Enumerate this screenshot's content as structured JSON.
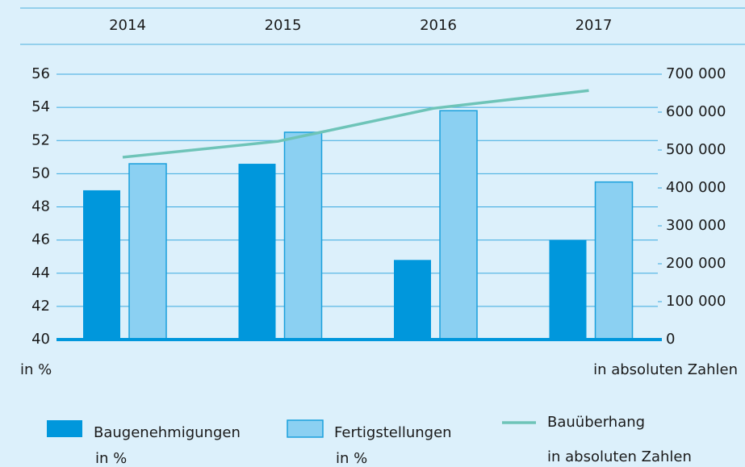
{
  "chart_data": {
    "type": "bar_line",
    "categories": [
      "2014",
      "2015",
      "2016",
      "2017"
    ],
    "series": [
      {
        "name": "Baugenehmigungen",
        "unit": "in %",
        "color": "#0097dc",
        "values": [
          49,
          50.6,
          44.8,
          46
        ]
      },
      {
        "name": "Fertigstellungen",
        "unit": "in %",
        "color": "#8bd0f2",
        "values": [
          50.6,
          52.5,
          53.8,
          49.5
        ]
      },
      {
        "name": "Bauüberhang",
        "unit": "in absoluten Zahlen",
        "color": "#6ec4b8",
        "axis": "y2",
        "type": "line",
        "values": [
          481000,
          523000,
          610000,
          657000
        ]
      }
    ],
    "y_label": "in %",
    "y2_label": "in absoluten Zahlen",
    "ylim": [
      40,
      56
    ],
    "yticks": [
      40,
      42,
      44,
      46,
      48,
      50,
      52,
      54,
      56
    ],
    "y2lim": [
      0,
      700000
    ],
    "y2ticks": [
      0,
      {
        "value": 100000,
        "label": "100 000"
      },
      {
        "value": 200000,
        "label": "200 000"
      },
      {
        "value": 300000,
        "label": "300 000"
      },
      {
        "value": 400000,
        "label": "400 000"
      },
      {
        "value": 500000,
        "label": "500 000"
      },
      {
        "value": 600000,
        "label": "600 000"
      },
      {
        "value": 700000,
        "label": "700 000"
      }
    ],
    "grid": true
  }
}
